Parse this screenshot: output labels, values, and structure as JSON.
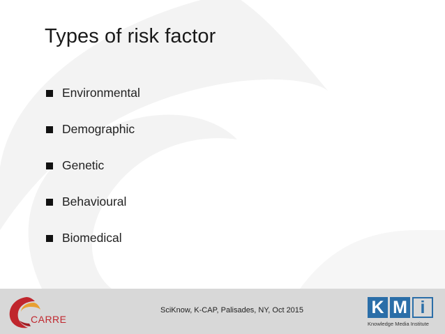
{
  "slide": {
    "title": "Types of risk factor",
    "bullets": [
      {
        "label": "Environmental"
      },
      {
        "label": "Demographic"
      },
      {
        "label": "Genetic"
      },
      {
        "label": "Behavioural"
      },
      {
        "label": "Biomedical"
      }
    ]
  },
  "footer": {
    "text": "SciKnow, K-CAP, Palisades, NY, Oct 2015",
    "left_logo_text": "CARRE",
    "right_logo": {
      "letter_k": "K",
      "letter_m": "M",
      "letter_i": "i",
      "caption": "Knowledge Media Institute"
    }
  },
  "colors": {
    "footer_background": "#d8d8d8",
    "carre_red": "#c0262d",
    "kmi_blue": "#2b6ea8",
    "watermark": "#f2f2f2"
  },
  "icons": {
    "bullet": "square-bullet-icon",
    "left_logo": "carre-swirl-logo",
    "watermark": "large-swirl-watermark"
  }
}
